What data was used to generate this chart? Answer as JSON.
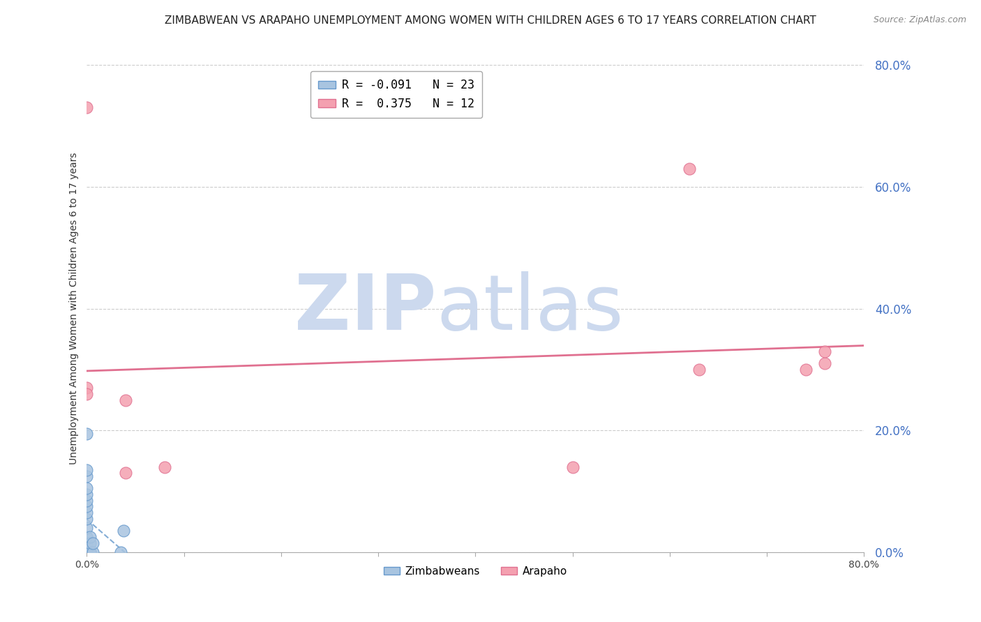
{
  "title": "ZIMBABWEAN VS ARAPAHO UNEMPLOYMENT AMONG WOMEN WITH CHILDREN AGES 6 TO 17 YEARS CORRELATION CHART",
  "source": "Source: ZipAtlas.com",
  "ylabel": "Unemployment Among Women with Children Ages 6 to 17 years",
  "xlim": [
    0.0,
    0.8
  ],
  "ylim": [
    0.0,
    0.8
  ],
  "zimbabwean_x": [
    0.0,
    0.0,
    0.0,
    0.0,
    0.0,
    0.0,
    0.0,
    0.0,
    0.0,
    0.0,
    0.0,
    0.0,
    0.0,
    0.0,
    0.003,
    0.003,
    0.003,
    0.003,
    0.003,
    0.006,
    0.006,
    0.035,
    0.038
  ],
  "zimbabwean_y": [
    0.0,
    0.0,
    0.015,
    0.025,
    0.04,
    0.055,
    0.065,
    0.075,
    0.085,
    0.095,
    0.105,
    0.125,
    0.135,
    0.195,
    0.0,
    0.0,
    0.0,
    0.015,
    0.025,
    0.0,
    0.015,
    0.0,
    0.035
  ],
  "arapaho_x": [
    0.0,
    0.0,
    0.0,
    0.04,
    0.04,
    0.08,
    0.5,
    0.62,
    0.63,
    0.74,
    0.76,
    0.76
  ],
  "arapaho_y": [
    0.73,
    0.27,
    0.26,
    0.25,
    0.13,
    0.14,
    0.14,
    0.63,
    0.3,
    0.3,
    0.31,
    0.33
  ],
  "zim_color": "#a8c4e0",
  "ara_color": "#f4a0b0",
  "zim_trend_color": "#6699cc",
  "ara_trend_color": "#e07090",
  "zim_R": -0.091,
  "zim_N": 23,
  "ara_R": 0.375,
  "ara_N": 12,
  "watermark_zip": "ZIP",
  "watermark_atlas": "atlas",
  "watermark_color": "#ccd9ee",
  "background_color": "#ffffff",
  "grid_color": "#cccccc",
  "tick_color": "#4472c4",
  "title_fontsize": 11,
  "label_fontsize": 10,
  "legend_fontsize": 11,
  "legend_label_zim": "R = -0.091   N = 23",
  "legend_label_ara": "R =  0.375   N = 12",
  "bottom_legend_zim": "Zimbabweans",
  "bottom_legend_ara": "Arapaho"
}
